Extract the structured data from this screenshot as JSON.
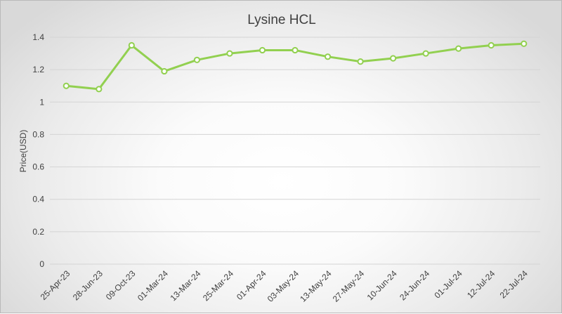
{
  "chart_data": {
    "type": "line",
    "title": "Lysine HCL",
    "xlabel": "",
    "ylabel": "Price(USD)",
    "ylim": [
      0,
      1.4
    ],
    "yticks": [
      0,
      0.2,
      0.4,
      0.6,
      0.8,
      1,
      1.2,
      1.4
    ],
    "ytick_labels": [
      "0",
      "0.2",
      "0.4",
      "0.6",
      "0.8",
      "1",
      "1.2",
      "1.4"
    ],
    "categories": [
      "25-Apr-23",
      "28-Jun-23",
      "09-Oct-23",
      "01-Mar-24",
      "13-Mar-24",
      "25-Mar-24",
      "01-Apr-24",
      "03-May-24",
      "13-May-24",
      "27-May-24",
      "10-Jun-24",
      "24-Jun-24",
      "01-Jul-24",
      "12-Jul-24",
      "22-Jul-24"
    ],
    "series": [
      {
        "values": [
          1.1,
          1.08,
          1.35,
          1.19,
          1.26,
          1.3,
          1.32,
          1.32,
          1.28,
          1.25,
          1.27,
          1.3,
          1.33,
          1.35,
          1.36
        ],
        "color": "#92d050"
      }
    ],
    "grid": true,
    "legend": "none"
  }
}
